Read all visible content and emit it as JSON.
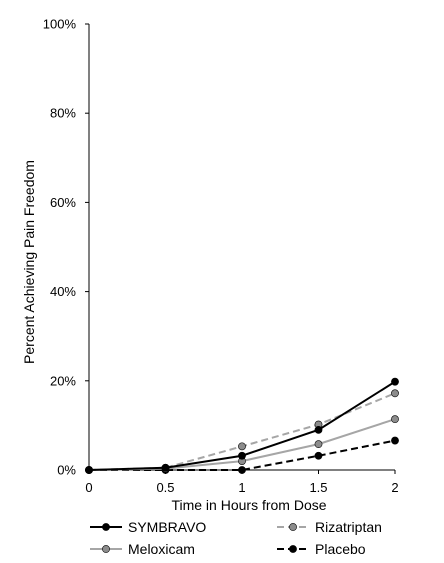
{
  "chart_data": {
    "type": "line",
    "title": "",
    "xlabel": "Time in Hours from Dose",
    "ylabel": "Percent Achieving Pain Freedom",
    "x": [
      0,
      0.5,
      1,
      1.5,
      2
    ],
    "x_tick_labels": [
      "0",
      "0.5",
      "1",
      "1.5",
      "2"
    ],
    "xlim": [
      0,
      2
    ],
    "ylim": [
      0,
      100
    ],
    "y_ticks": [
      0,
      20,
      40,
      60,
      80,
      100
    ],
    "y_tick_labels": [
      "0%",
      "20%",
      "40%",
      "60%",
      "80%",
      "100%"
    ],
    "grid": false,
    "legend_position": "bottom",
    "series": [
      {
        "name": "SYMBRAVO",
        "color": "#000000",
        "marker_color": "#000000",
        "dashed": false,
        "x": [
          0,
          0.5,
          1,
          1.5,
          2
        ],
        "values": [
          0,
          0.5,
          3.2,
          9.0,
          19.8
        ]
      },
      {
        "name": "Rizatriptan",
        "color": "#a6a6a6",
        "marker_color": "#8c8c8c",
        "dashed": true,
        "x": [
          0,
          0.5,
          1,
          1.5,
          2
        ],
        "values": [
          0,
          0.5,
          5.3,
          10.2,
          17.2
        ]
      },
      {
        "name": "Meloxicam",
        "color": "#a6a6a6",
        "marker_color": "#8c8c8c",
        "dashed": false,
        "x": [
          0,
          0.5,
          1,
          1.5,
          2
        ],
        "values": [
          0,
          0.3,
          2.0,
          5.8,
          11.4
        ]
      },
      {
        "name": "Placebo",
        "color": "#000000",
        "marker_color": "#000000",
        "dashed": true,
        "x": [
          0,
          0.5,
          1,
          1.5,
          2
        ],
        "values": [
          0,
          0,
          0,
          3.2,
          6.6
        ]
      }
    ]
  }
}
